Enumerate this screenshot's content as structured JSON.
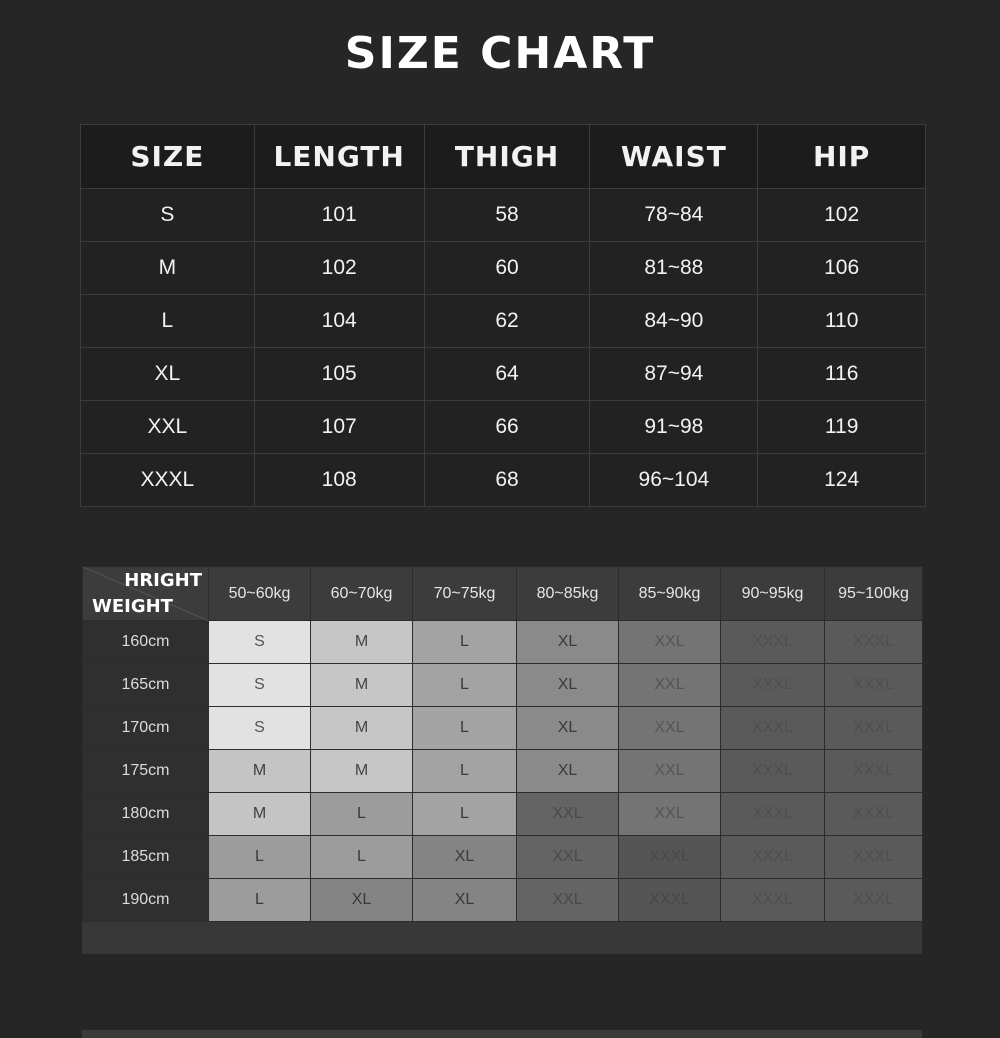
{
  "title": "SIZE CHART",
  "size_table": {
    "headers": [
      "SIZE",
      "LENGTH",
      "THIGH",
      "WAIST",
      "HIP"
    ],
    "rows": [
      [
        "S",
        "101",
        "58",
        "78~84",
        "102"
      ],
      [
        "M",
        "102",
        "60",
        "81~88",
        "106"
      ],
      [
        "L",
        "104",
        "62",
        "84~90",
        "110"
      ],
      [
        "XL",
        "105",
        "64",
        "87~94",
        "116"
      ],
      [
        "XXL",
        "107",
        "66",
        "91~98",
        "119"
      ],
      [
        "XXXL",
        "108",
        "68",
        "96~104",
        "124"
      ]
    ]
  },
  "fit_table": {
    "corner_top": "HRIGHT",
    "corner_bottom": "WEIGHT",
    "columns": [
      "50~60kg",
      "60~70kg",
      "70~75kg",
      "80~85kg",
      "85~90kg",
      "90~95kg",
      "95~100kg"
    ],
    "rows": [
      {
        "label": "160cm",
        "cells": [
          "S",
          "M",
          "L",
          "XL",
          "XXL",
          "XXXL",
          "XXXL"
        ]
      },
      {
        "label": "165cm",
        "cells": [
          "S",
          "M",
          "L",
          "XL",
          "XXL",
          "XXXL",
          "XXXL"
        ]
      },
      {
        "label": "170cm",
        "cells": [
          "S",
          "M",
          "L",
          "XL",
          "XXL",
          "XXXL",
          "XXXL"
        ]
      },
      {
        "label": "175cm",
        "cells": [
          "M",
          "M",
          "L",
          "XL",
          "XXL",
          "XXXL",
          "XXXL"
        ]
      },
      {
        "label": "180cm",
        "cells": [
          "M",
          "L",
          "L",
          "XXL",
          "XXL",
          "XXXL",
          "XXXL"
        ]
      },
      {
        "label": "185cm",
        "cells": [
          "L",
          "L",
          "XL",
          "XXL",
          "XXXL",
          "XXXL",
          "XXXL"
        ]
      },
      {
        "label": "190cm",
        "cells": [
          "L",
          "XL",
          "XL",
          "XXL",
          "XXXL",
          "XXXL",
          "XXXL"
        ]
      }
    ]
  }
}
